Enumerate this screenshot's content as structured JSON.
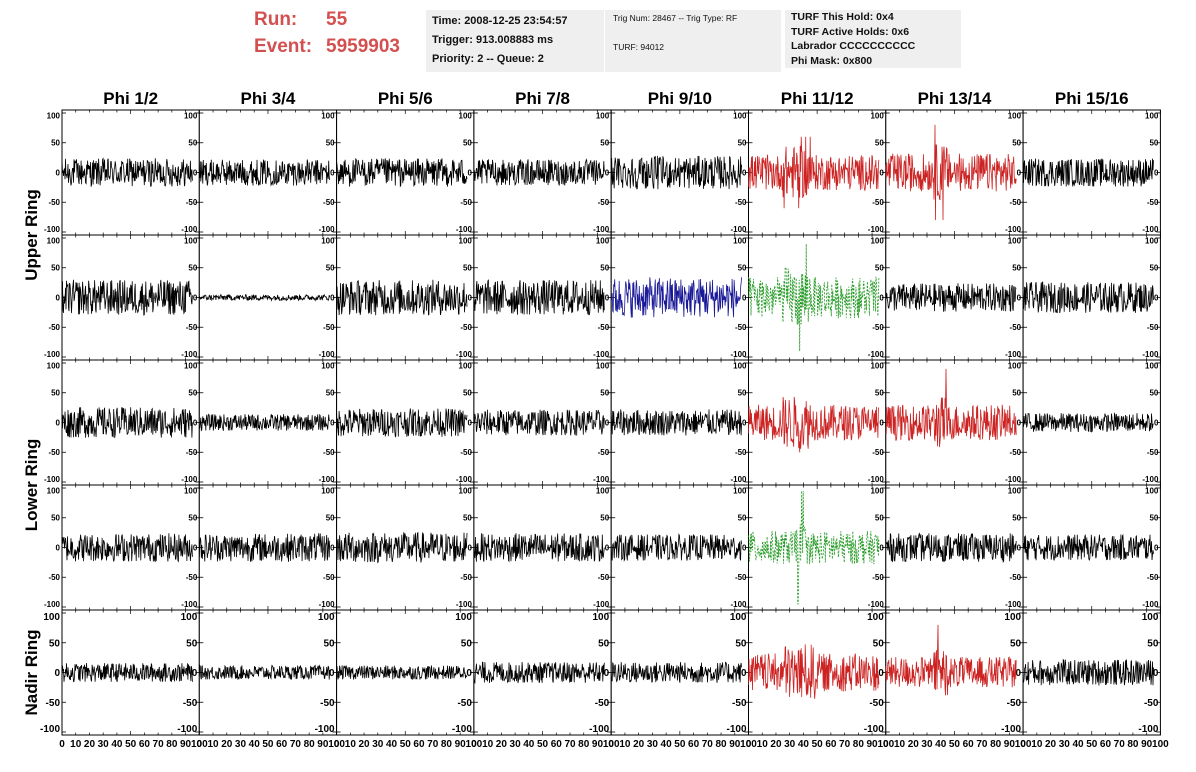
{
  "header": {
    "run_label": "Run:",
    "run_value": "55",
    "event_label": "Event:",
    "event_value": "5959903"
  },
  "info_time": {
    "time": "Time: 2008-12-25 23:54:57",
    "trigger": "Trigger: 913.008883 ms",
    "priority": "Priority: 2 -- Queue: 2"
  },
  "info_trig": {
    "trig": "Trig Num: 28467 -- Trig Type: RF",
    "turf": "TURF: 94012"
  },
  "info_turf": {
    "this_hold": "TURF This Hold: 0x4",
    "active_holds": "TURF Active Holds: 0x6",
    "labrador": "Labrador CCCCCCCCCC",
    "phi_mask": "Phi Mask: 0x800"
  },
  "chart_data": {
    "type": "line",
    "title": "",
    "xlim": [
      0,
      100
    ],
    "ylim": [
      -100,
      100
    ],
    "x_ticks": [
      "0",
      "10",
      "20",
      "30",
      "40",
      "50",
      "60",
      "70",
      "80",
      "90",
      "100"
    ],
    "y_ticks": [
      "100",
      "50",
      "0",
      "-50",
      "-100"
    ],
    "columns": [
      "Phi 1/2",
      "Phi 3/4",
      "Phi 5/6",
      "Phi 7/8",
      "Phi 9/10",
      "Phi 11/12",
      "Phi 13/14",
      "Phi 15/16"
    ],
    "ring_labels": [
      {
        "text": "Upper Ring",
        "rows": [
          0,
          1
        ]
      },
      {
        "text": "Lower Ring",
        "rows": [
          2,
          3
        ]
      },
      {
        "text": "Nadir Ring",
        "rows": [
          4
        ]
      }
    ],
    "colors": {
      "normal": "#000000",
      "triggered": "#cc2222",
      "masked": "#1a1a99",
      "hold": "#229922"
    },
    "panels": [
      [
        {
          "amp": 24,
          "color": "normal"
        },
        {
          "amp": 22,
          "color": "normal"
        },
        {
          "amp": 24,
          "color": "normal"
        },
        {
          "amp": 22,
          "color": "normal"
        },
        {
          "amp": 28,
          "color": "normal"
        },
        {
          "amp": 30,
          "color": "triggered",
          "burst": [
            25,
            45
          ],
          "peak": 60
        },
        {
          "amp": 32,
          "color": "triggered",
          "burst": [
            35,
            45
          ],
          "peak": 80
        },
        {
          "amp": 24,
          "color": "normal"
        }
      ],
      [
        {
          "amp": 30,
          "color": "normal"
        },
        {
          "amp": 5,
          "color": "normal"
        },
        {
          "amp": 30,
          "color": "normal"
        },
        {
          "amp": 30,
          "color": "normal"
        },
        {
          "amp": 34,
          "color": "masked"
        },
        {
          "amp": 35,
          "color": "hold",
          "dashed": true,
          "burst": [
            25,
            45
          ],
          "peak": 90
        },
        {
          "amp": 24,
          "color": "normal"
        },
        {
          "amp": 26,
          "color": "normal"
        }
      ],
      [
        {
          "amp": 26,
          "color": "normal"
        },
        {
          "amp": 14,
          "color": "normal"
        },
        {
          "amp": 24,
          "color": "normal"
        },
        {
          "amp": 22,
          "color": "normal"
        },
        {
          "amp": 22,
          "color": "normal"
        },
        {
          "amp": 30,
          "color": "triggered",
          "burst": [
            25,
            45
          ],
          "peak": 50
        },
        {
          "amp": 30,
          "color": "triggered",
          "burst": [
            35,
            45
          ],
          "peak": 90
        },
        {
          "amp": 16,
          "color": "normal"
        }
      ],
      [
        {
          "amp": 24,
          "color": "normal"
        },
        {
          "amp": 24,
          "color": "normal"
        },
        {
          "amp": 26,
          "color": "normal"
        },
        {
          "amp": 24,
          "color": "normal"
        },
        {
          "amp": 22,
          "color": "normal"
        },
        {
          "amp": 28,
          "color": "hold",
          "dashed": true,
          "burst": [
            35,
            42
          ],
          "peak": 95
        },
        {
          "amp": 24,
          "color": "normal"
        },
        {
          "amp": 22,
          "color": "normal"
        }
      ],
      [
        {
          "amp": 16,
          "color": "normal"
        },
        {
          "amp": 12,
          "color": "normal"
        },
        {
          "amp": 12,
          "color": "normal"
        },
        {
          "amp": 18,
          "color": "normal"
        },
        {
          "amp": 18,
          "color": "normal"
        },
        {
          "amp": 32,
          "color": "triggered",
          "burst": [
            25,
            50
          ],
          "peak": 50
        },
        {
          "amp": 26,
          "color": "triggered",
          "burst": [
            35,
            45
          ],
          "peak": 80
        },
        {
          "amp": 22,
          "color": "normal"
        }
      ]
    ]
  }
}
